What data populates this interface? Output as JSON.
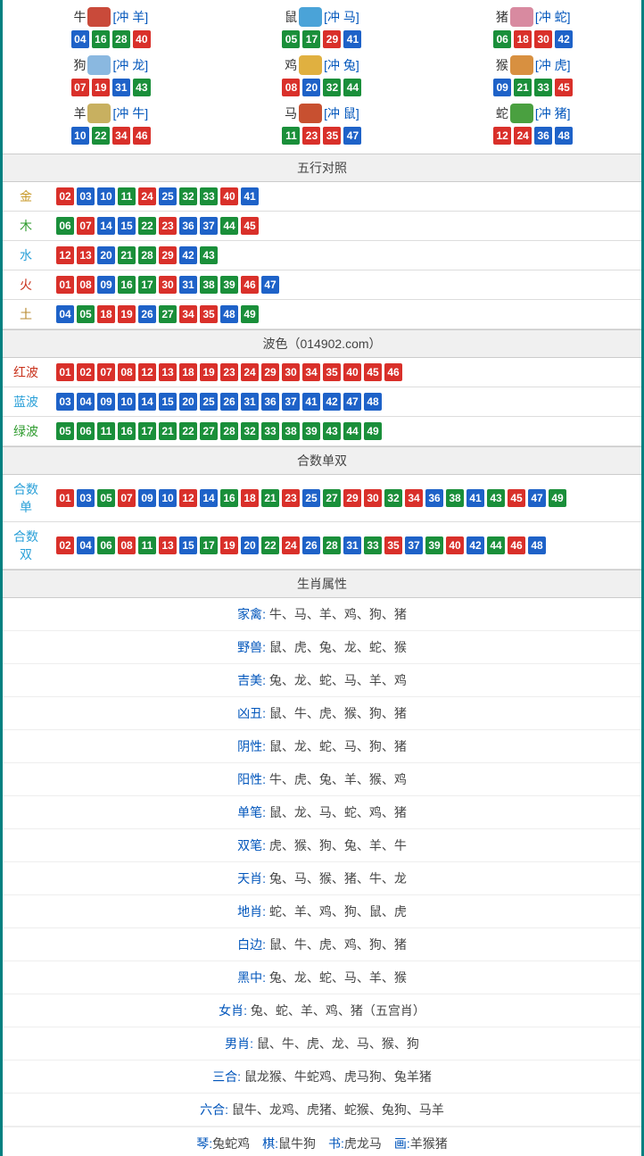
{
  "colors": {
    "red": "#d9302a",
    "blue": "#1e62c8",
    "green": "#1a8f3a",
    "gold": "#c89a2a",
    "wood": "#2e9b2e",
    "water": "#2aa0d8",
    "fire": "#c8301a",
    "earth": "#b88a30"
  },
  "zodiac": [
    {
      "name": "牛",
      "clash": "[冲 羊]",
      "icon_color": "#c94a3a",
      "balls": [
        {
          "n": "04",
          "c": "blue"
        },
        {
          "n": "16",
          "c": "green"
        },
        {
          "n": "28",
          "c": "green"
        },
        {
          "n": "40",
          "c": "red"
        }
      ]
    },
    {
      "name": "鼠",
      "clash": "[冲 马]",
      "icon_color": "#4aa3d8",
      "balls": [
        {
          "n": "05",
          "c": "green"
        },
        {
          "n": "17",
          "c": "green"
        },
        {
          "n": "29",
          "c": "red"
        },
        {
          "n": "41",
          "c": "blue"
        }
      ]
    },
    {
      "name": "猪",
      "clash": "[冲 蛇]",
      "icon_color": "#d88aa0",
      "balls": [
        {
          "n": "06",
          "c": "green"
        },
        {
          "n": "18",
          "c": "red"
        },
        {
          "n": "30",
          "c": "red"
        },
        {
          "n": "42",
          "c": "blue"
        }
      ]
    },
    {
      "name": "狗",
      "clash": "[冲 龙]",
      "icon_color": "#8ab8e0",
      "balls": [
        {
          "n": "07",
          "c": "red"
        },
        {
          "n": "19",
          "c": "red"
        },
        {
          "n": "31",
          "c": "blue"
        },
        {
          "n": "43",
          "c": "green"
        }
      ]
    },
    {
      "name": "鸡",
      "clash": "[冲 兔]",
      "icon_color": "#e0b040",
      "balls": [
        {
          "n": "08",
          "c": "red"
        },
        {
          "n": "20",
          "c": "blue"
        },
        {
          "n": "32",
          "c": "green"
        },
        {
          "n": "44",
          "c": "green"
        }
      ]
    },
    {
      "name": "猴",
      "clash": "[冲 虎]",
      "icon_color": "#d89040",
      "balls": [
        {
          "n": "09",
          "c": "blue"
        },
        {
          "n": "21",
          "c": "green"
        },
        {
          "n": "33",
          "c": "green"
        },
        {
          "n": "45",
          "c": "red"
        }
      ]
    },
    {
      "name": "羊",
      "clash": "[冲 牛]",
      "icon_color": "#c8b060",
      "balls": [
        {
          "n": "10",
          "c": "blue"
        },
        {
          "n": "22",
          "c": "green"
        },
        {
          "n": "34",
          "c": "red"
        },
        {
          "n": "46",
          "c": "red"
        }
      ]
    },
    {
      "name": "马",
      "clash": "[冲 鼠]",
      "icon_color": "#c85030",
      "balls": [
        {
          "n": "11",
          "c": "green"
        },
        {
          "n": "23",
          "c": "red"
        },
        {
          "n": "35",
          "c": "red"
        },
        {
          "n": "47",
          "c": "blue"
        }
      ]
    },
    {
      "name": "蛇",
      "clash": "[冲 猪]",
      "icon_color": "#4aa040",
      "balls": [
        {
          "n": "12",
          "c": "red"
        },
        {
          "n": "24",
          "c": "red"
        },
        {
          "n": "36",
          "c": "blue"
        },
        {
          "n": "48",
          "c": "blue"
        }
      ]
    }
  ],
  "wuxing": {
    "title": "五行对照",
    "rows": [
      {
        "label": "金",
        "label_color": "gold",
        "balls": [
          {
            "n": "02",
            "c": "red"
          },
          {
            "n": "03",
            "c": "blue"
          },
          {
            "n": "10",
            "c": "blue"
          },
          {
            "n": "11",
            "c": "green"
          },
          {
            "n": "24",
            "c": "red"
          },
          {
            "n": "25",
            "c": "blue"
          },
          {
            "n": "32",
            "c": "green"
          },
          {
            "n": "33",
            "c": "green"
          },
          {
            "n": "40",
            "c": "red"
          },
          {
            "n": "41",
            "c": "blue"
          }
        ]
      },
      {
        "label": "木",
        "label_color": "wood",
        "balls": [
          {
            "n": "06",
            "c": "green"
          },
          {
            "n": "07",
            "c": "red"
          },
          {
            "n": "14",
            "c": "blue"
          },
          {
            "n": "15",
            "c": "blue"
          },
          {
            "n": "22",
            "c": "green"
          },
          {
            "n": "23",
            "c": "red"
          },
          {
            "n": "36",
            "c": "blue"
          },
          {
            "n": "37",
            "c": "blue"
          },
          {
            "n": "44",
            "c": "green"
          },
          {
            "n": "45",
            "c": "red"
          }
        ]
      },
      {
        "label": "水",
        "label_color": "water",
        "balls": [
          {
            "n": "12",
            "c": "red"
          },
          {
            "n": "13",
            "c": "red"
          },
          {
            "n": "20",
            "c": "blue"
          },
          {
            "n": "21",
            "c": "green"
          },
          {
            "n": "28",
            "c": "green"
          },
          {
            "n": "29",
            "c": "red"
          },
          {
            "n": "42",
            "c": "blue"
          },
          {
            "n": "43",
            "c": "green"
          }
        ]
      },
      {
        "label": "火",
        "label_color": "fire",
        "balls": [
          {
            "n": "01",
            "c": "red"
          },
          {
            "n": "08",
            "c": "red"
          },
          {
            "n": "09",
            "c": "blue"
          },
          {
            "n": "16",
            "c": "green"
          },
          {
            "n": "17",
            "c": "green"
          },
          {
            "n": "30",
            "c": "red"
          },
          {
            "n": "31",
            "c": "blue"
          },
          {
            "n": "38",
            "c": "green"
          },
          {
            "n": "39",
            "c": "green"
          },
          {
            "n": "46",
            "c": "red"
          },
          {
            "n": "47",
            "c": "blue"
          }
        ]
      },
      {
        "label": "土",
        "label_color": "earth",
        "balls": [
          {
            "n": "04",
            "c": "blue"
          },
          {
            "n": "05",
            "c": "green"
          },
          {
            "n": "18",
            "c": "red"
          },
          {
            "n": "19",
            "c": "red"
          },
          {
            "n": "26",
            "c": "blue"
          },
          {
            "n": "27",
            "c": "green"
          },
          {
            "n": "34",
            "c": "red"
          },
          {
            "n": "35",
            "c": "red"
          },
          {
            "n": "48",
            "c": "blue"
          },
          {
            "n": "49",
            "c": "green"
          }
        ]
      }
    ]
  },
  "bose": {
    "title": "波色（014902.com）",
    "rows": [
      {
        "label": "红波",
        "label_color": "fire",
        "balls": [
          {
            "n": "01",
            "c": "red"
          },
          {
            "n": "02",
            "c": "red"
          },
          {
            "n": "07",
            "c": "red"
          },
          {
            "n": "08",
            "c": "red"
          },
          {
            "n": "12",
            "c": "red"
          },
          {
            "n": "13",
            "c": "red"
          },
          {
            "n": "18",
            "c": "red"
          },
          {
            "n": "19",
            "c": "red"
          },
          {
            "n": "23",
            "c": "red"
          },
          {
            "n": "24",
            "c": "red"
          },
          {
            "n": "29",
            "c": "red"
          },
          {
            "n": "30",
            "c": "red"
          },
          {
            "n": "34",
            "c": "red"
          },
          {
            "n": "35",
            "c": "red"
          },
          {
            "n": "40",
            "c": "red"
          },
          {
            "n": "45",
            "c": "red"
          },
          {
            "n": "46",
            "c": "red"
          }
        ]
      },
      {
        "label": "蓝波",
        "label_color": "water",
        "balls": [
          {
            "n": "03",
            "c": "blue"
          },
          {
            "n": "04",
            "c": "blue"
          },
          {
            "n": "09",
            "c": "blue"
          },
          {
            "n": "10",
            "c": "blue"
          },
          {
            "n": "14",
            "c": "blue"
          },
          {
            "n": "15",
            "c": "blue"
          },
          {
            "n": "20",
            "c": "blue"
          },
          {
            "n": "25",
            "c": "blue"
          },
          {
            "n": "26",
            "c": "blue"
          },
          {
            "n": "31",
            "c": "blue"
          },
          {
            "n": "36",
            "c": "blue"
          },
          {
            "n": "37",
            "c": "blue"
          },
          {
            "n": "41",
            "c": "blue"
          },
          {
            "n": "42",
            "c": "blue"
          },
          {
            "n": "47",
            "c": "blue"
          },
          {
            "n": "48",
            "c": "blue"
          }
        ]
      },
      {
        "label": "绿波",
        "label_color": "wood",
        "balls": [
          {
            "n": "05",
            "c": "green"
          },
          {
            "n": "06",
            "c": "green"
          },
          {
            "n": "11",
            "c": "green"
          },
          {
            "n": "16",
            "c": "green"
          },
          {
            "n": "17",
            "c": "green"
          },
          {
            "n": "21",
            "c": "green"
          },
          {
            "n": "22",
            "c": "green"
          },
          {
            "n": "27",
            "c": "green"
          },
          {
            "n": "28",
            "c": "green"
          },
          {
            "n": "32",
            "c": "green"
          },
          {
            "n": "33",
            "c": "green"
          },
          {
            "n": "38",
            "c": "green"
          },
          {
            "n": "39",
            "c": "green"
          },
          {
            "n": "43",
            "c": "green"
          },
          {
            "n": "44",
            "c": "green"
          },
          {
            "n": "49",
            "c": "green"
          }
        ]
      }
    ]
  },
  "heshu": {
    "title": "合数单双",
    "rows": [
      {
        "label": "合数单",
        "label_color": "water",
        "balls": [
          {
            "n": "01",
            "c": "red"
          },
          {
            "n": "03",
            "c": "blue"
          },
          {
            "n": "05",
            "c": "green"
          },
          {
            "n": "07",
            "c": "red"
          },
          {
            "n": "09",
            "c": "blue"
          },
          {
            "n": "10",
            "c": "blue"
          },
          {
            "n": "12",
            "c": "red"
          },
          {
            "n": "14",
            "c": "blue"
          },
          {
            "n": "16",
            "c": "green"
          },
          {
            "n": "18",
            "c": "red"
          },
          {
            "n": "21",
            "c": "green"
          },
          {
            "n": "23",
            "c": "red"
          },
          {
            "n": "25",
            "c": "blue"
          },
          {
            "n": "27",
            "c": "green"
          },
          {
            "n": "29",
            "c": "red"
          },
          {
            "n": "30",
            "c": "red"
          },
          {
            "n": "32",
            "c": "green"
          },
          {
            "n": "34",
            "c": "red"
          },
          {
            "n": "36",
            "c": "blue"
          },
          {
            "n": "38",
            "c": "green"
          },
          {
            "n": "41",
            "c": "blue"
          },
          {
            "n": "43",
            "c": "green"
          },
          {
            "n": "45",
            "c": "red"
          },
          {
            "n": "47",
            "c": "blue"
          },
          {
            "n": "49",
            "c": "green"
          }
        ]
      },
      {
        "label": "合数双",
        "label_color": "water",
        "balls": [
          {
            "n": "02",
            "c": "red"
          },
          {
            "n": "04",
            "c": "blue"
          },
          {
            "n": "06",
            "c": "green"
          },
          {
            "n": "08",
            "c": "red"
          },
          {
            "n": "11",
            "c": "green"
          },
          {
            "n": "13",
            "c": "red"
          },
          {
            "n": "15",
            "c": "blue"
          },
          {
            "n": "17",
            "c": "green"
          },
          {
            "n": "19",
            "c": "red"
          },
          {
            "n": "20",
            "c": "blue"
          },
          {
            "n": "22",
            "c": "green"
          },
          {
            "n": "24",
            "c": "red"
          },
          {
            "n": "26",
            "c": "blue"
          },
          {
            "n": "28",
            "c": "green"
          },
          {
            "n": "31",
            "c": "blue"
          },
          {
            "n": "33",
            "c": "green"
          },
          {
            "n": "35",
            "c": "red"
          },
          {
            "n": "37",
            "c": "blue"
          },
          {
            "n": "39",
            "c": "green"
          },
          {
            "n": "40",
            "c": "red"
          },
          {
            "n": "42",
            "c": "blue"
          },
          {
            "n": "44",
            "c": "green"
          },
          {
            "n": "46",
            "c": "red"
          },
          {
            "n": "48",
            "c": "blue"
          }
        ]
      }
    ]
  },
  "attrs": {
    "title": "生肖属性",
    "rows": [
      {
        "label": "家禽",
        "val": "牛、马、羊、鸡、狗、猪"
      },
      {
        "label": "野兽",
        "val": "鼠、虎、兔、龙、蛇、猴"
      },
      {
        "label": "吉美",
        "val": "兔、龙、蛇、马、羊、鸡"
      },
      {
        "label": "凶丑",
        "val": "鼠、牛、虎、猴、狗、猪"
      },
      {
        "label": "阴性",
        "val": "鼠、龙、蛇、马、狗、猪"
      },
      {
        "label": "阳性",
        "val": "牛、虎、兔、羊、猴、鸡"
      },
      {
        "label": "单笔",
        "val": "鼠、龙、马、蛇、鸡、猪"
      },
      {
        "label": "双笔",
        "val": "虎、猴、狗、兔、羊、牛"
      },
      {
        "label": "天肖",
        "val": "兔、马、猴、猪、牛、龙"
      },
      {
        "label": "地肖",
        "val": "蛇、羊、鸡、狗、鼠、虎"
      },
      {
        "label": "白边",
        "val": "鼠、牛、虎、鸡、狗、猪"
      },
      {
        "label": "黑中",
        "val": "兔、龙、蛇、马、羊、猴"
      },
      {
        "label": "女肖",
        "val": "兔、蛇、羊、鸡、猪（五宫肖）"
      },
      {
        "label": "男肖",
        "val": "鼠、牛、虎、龙、马、猴、狗"
      },
      {
        "label": "三合",
        "val": "鼠龙猴、牛蛇鸡、虎马狗、兔羊猪"
      },
      {
        "label": "六合",
        "val": "鼠牛、龙鸡、虎猪、蛇猴、兔狗、马羊"
      }
    ]
  },
  "footer": {
    "segments": [
      {
        "label": "琴:",
        "val": "兔蛇鸡"
      },
      {
        "label": "棋:",
        "val": "鼠牛狗"
      },
      {
        "label": "书:",
        "val": "虎龙马"
      },
      {
        "label": "画:",
        "val": "羊猴猪"
      }
    ]
  }
}
